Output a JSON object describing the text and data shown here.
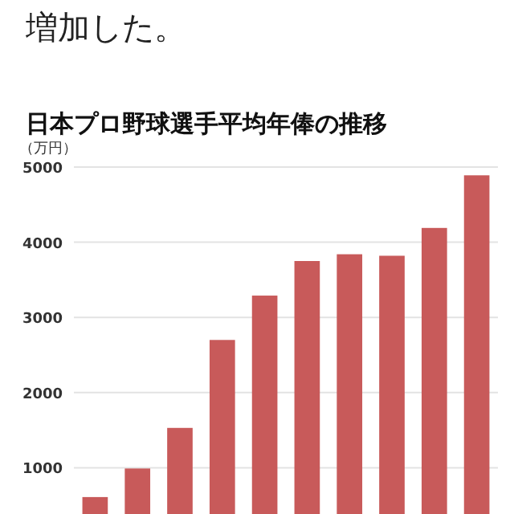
{
  "chart_data": {
    "type": "bar",
    "title": "日本プロ野球選手平均年俸の推移",
    "ylabel": "（万円）",
    "annotations": [
      "増加した。"
    ],
    "categories": [
      null,
      null,
      null,
      null,
      null,
      null,
      null,
      null,
      null,
      null
    ],
    "values": [
      610,
      990,
      1530,
      2700,
      3290,
      3750,
      3840,
      3820,
      4190,
      4890
    ],
    "color": "#c85a5a",
    "ylim": [
      0,
      5000
    ],
    "yticks": [
      1000,
      2000,
      3000,
      4000,
      5000
    ],
    "grid": "y"
  }
}
